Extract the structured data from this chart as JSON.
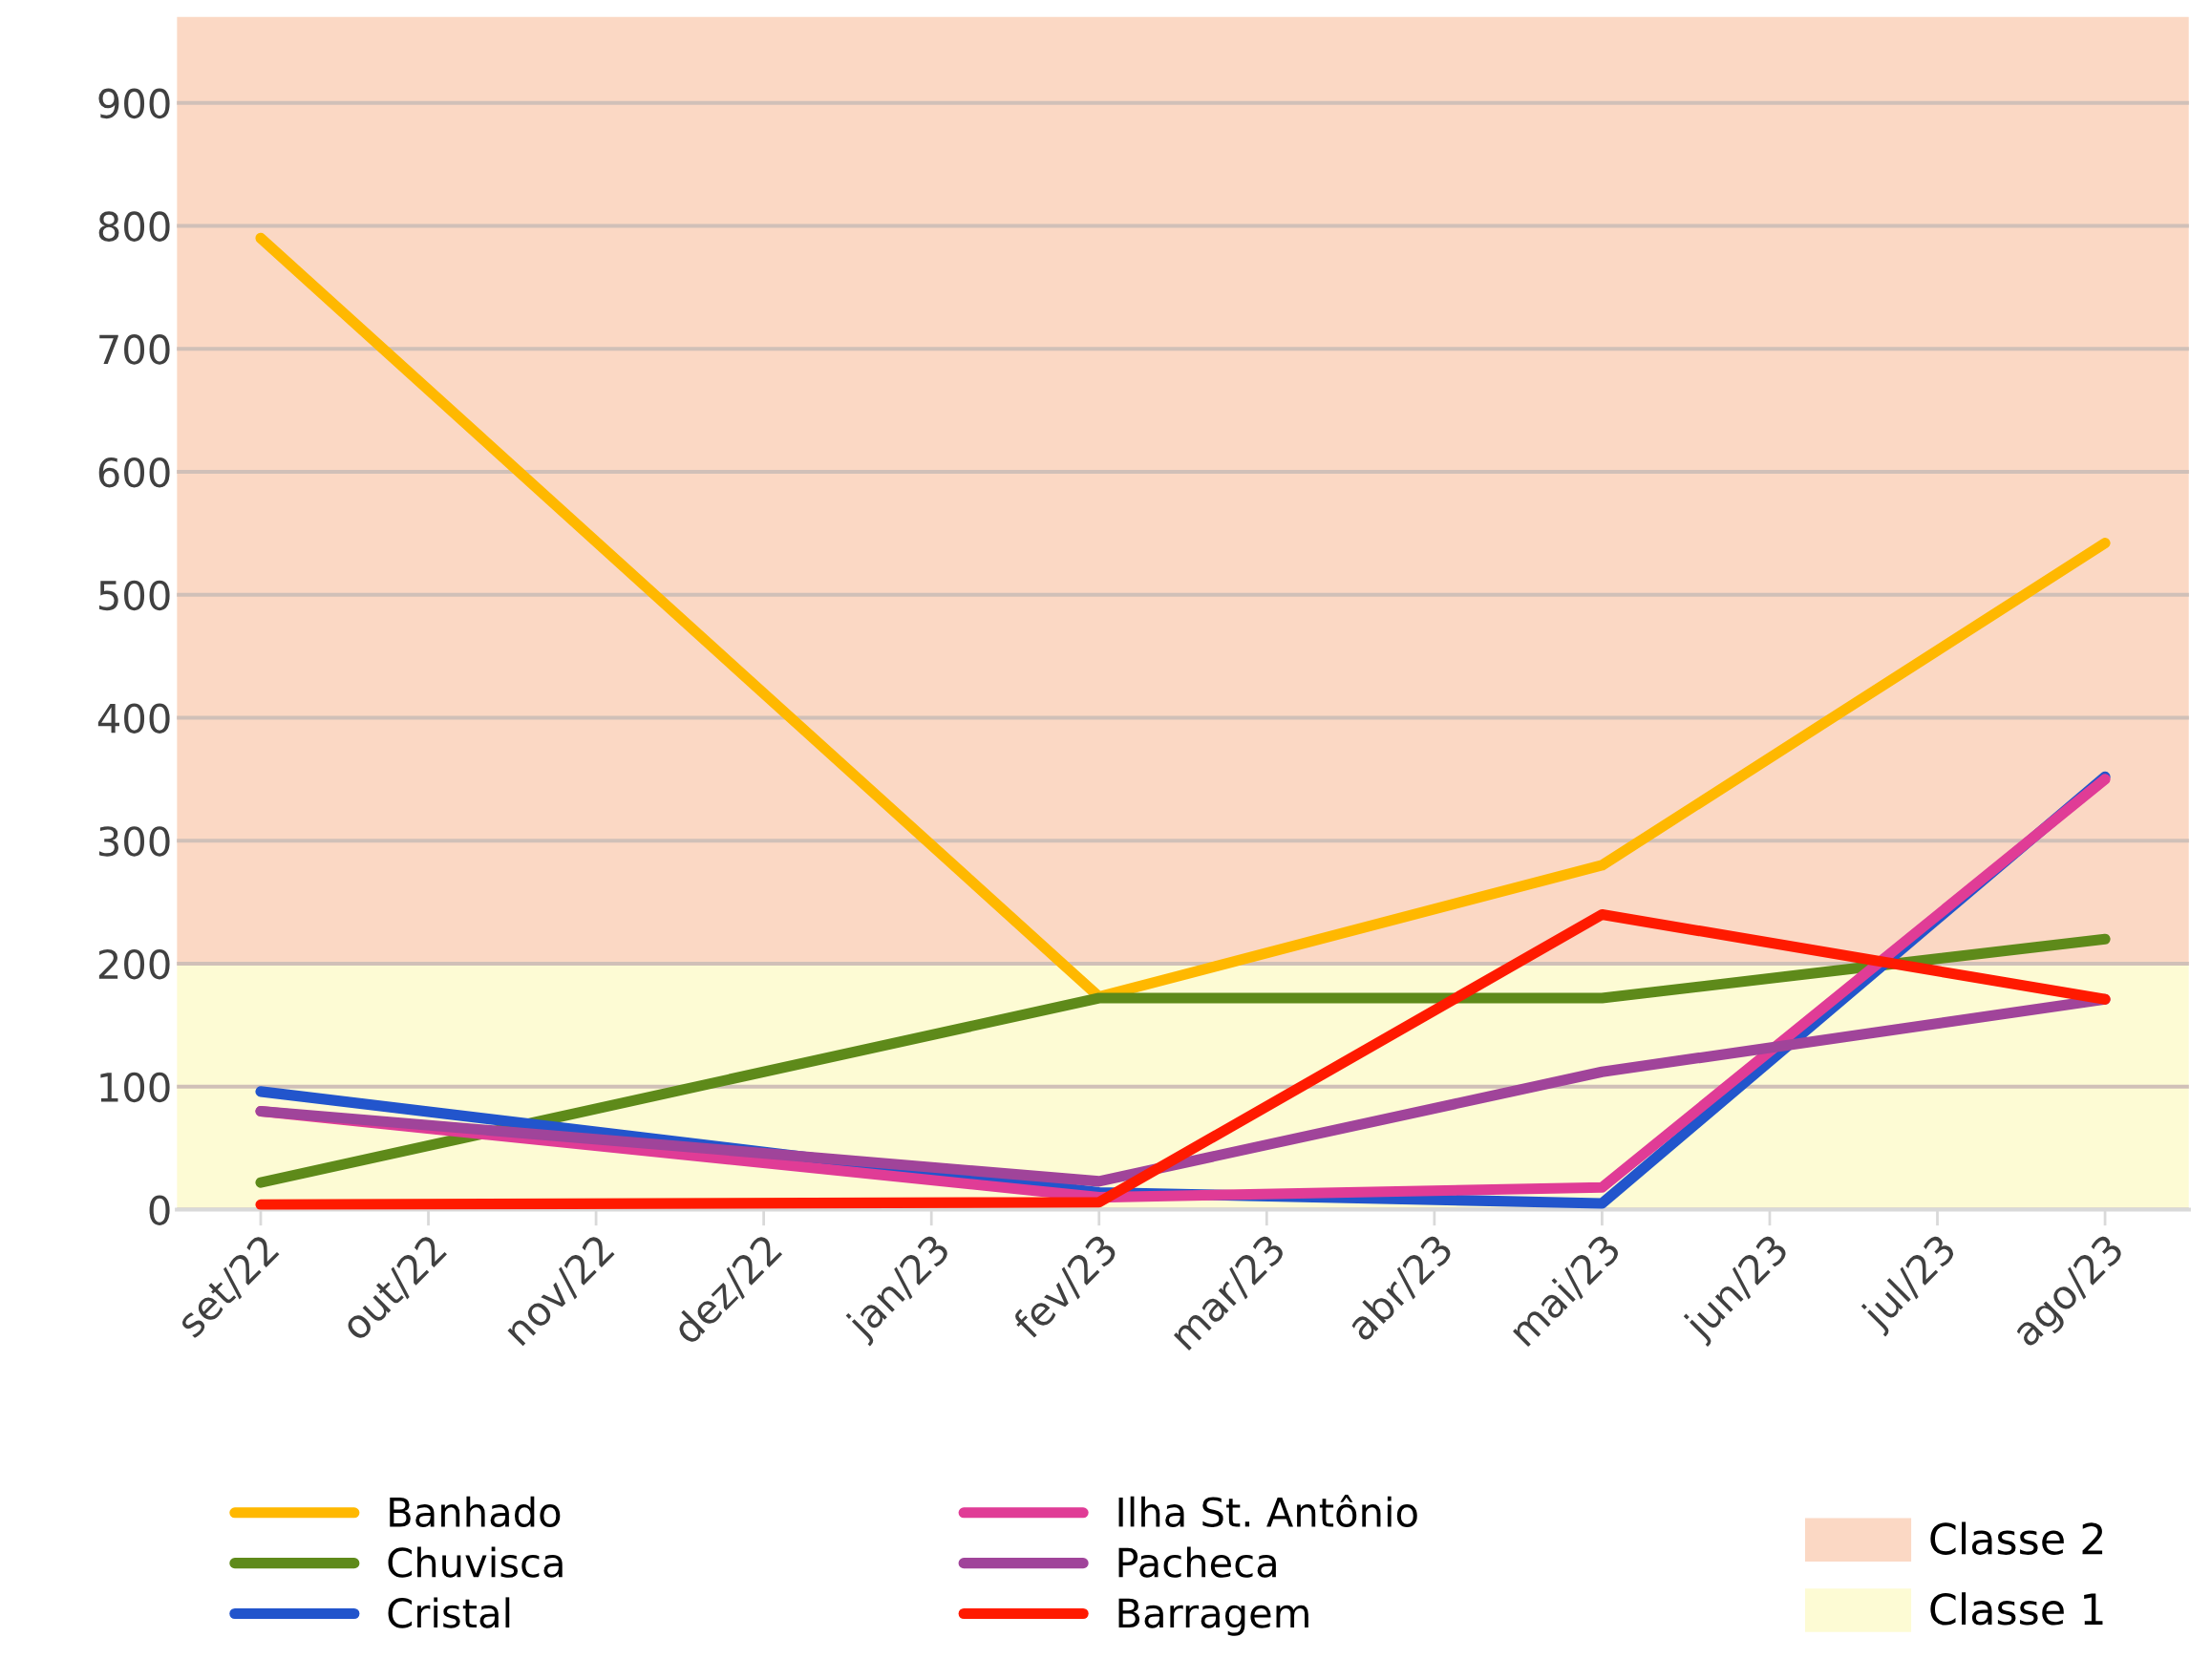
{
  "chart_data": {
    "type": "line",
    "categories": [
      "set/22",
      "out/22",
      "nov/22",
      "dez/22",
      "jan/23",
      "fev/23",
      "mar/23",
      "abr/23",
      "mai/23",
      "jun/23",
      "jul/23",
      "ago/23"
    ],
    "series": [
      {
        "name": "Banhado",
        "color": "#ffb800",
        "values": [
          790,
          null,
          null,
          null,
          null,
          173,
          null,
          null,
          280,
          null,
          null,
          542
        ]
      },
      {
        "name": "Chuvisca",
        "color": "#5e8a1a",
        "values": [
          22,
          null,
          null,
          null,
          null,
          172,
          null,
          null,
          172,
          null,
          null,
          220
        ]
      },
      {
        "name": "Cristal",
        "color": "#2255cc",
        "values": [
          96,
          null,
          null,
          null,
          null,
          14,
          null,
          null,
          5,
          null,
          null,
          352
        ]
      },
      {
        "name": "Ilha St. Antônio",
        "color": "#e03c96",
        "values": [
          80,
          null,
          null,
          null,
          null,
          10,
          null,
          null,
          18,
          null,
          null,
          350
        ]
      },
      {
        "name": "Pacheca",
        "color": "#a0449a",
        "values": [
          80,
          null,
          null,
          null,
          null,
          23,
          null,
          null,
          112,
          null,
          null,
          171
        ]
      },
      {
        "name": "Barragem",
        "color": "#ff1a00",
        "values": [
          4,
          null,
          null,
          null,
          null,
          6,
          null,
          null,
          240,
          null,
          null,
          171
        ]
      }
    ],
    "ylim": [
      0,
      970
    ],
    "yticks": [
      0,
      100,
      200,
      300,
      400,
      500,
      600,
      700,
      800,
      900
    ],
    "grid": "y",
    "legend": "bottom",
    "line_style": "solid",
    "marker": "none",
    "bands": [
      {
        "axis": "y",
        "from": 200,
        "to": 970,
        "label": "Classe 2",
        "color": "#fbd8c4"
      },
      {
        "axis": "y",
        "from": 0,
        "to": 200,
        "label": "Classe 1",
        "color": "#fdfbd4"
      }
    ]
  }
}
